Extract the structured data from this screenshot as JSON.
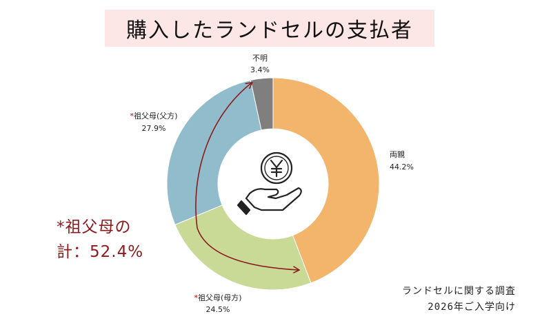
{
  "title": "購入したランドセルの支払者",
  "chart_data": {
    "type": "pie",
    "donut": true,
    "slices": [
      {
        "label": "両親",
        "value": 44.2,
        "value_label": "44.2%",
        "color": "#f2b56b"
      },
      {
        "label": "祖父母(母方)",
        "value": 24.5,
        "value_label": "24.5%",
        "color": "#c8da96",
        "asterisk": "*"
      },
      {
        "label": "祖父母(父方)",
        "value": 27.9,
        "value_label": "27.9%",
        "color": "#91bccb",
        "asterisk": "*"
      },
      {
        "label": "不明",
        "value": 3.4,
        "value_label": "3.4%",
        "color": "#7f7f7f"
      }
    ],
    "center_icon": "yen-coin-in-hand-icon",
    "annotation": {
      "line1": "*祖父母の",
      "line2": "計：52.4%",
      "arrow_color": "#8b1a1a"
    }
  },
  "source": {
    "line1": "ランドセルに関する調査",
    "line2": "2026年ご入学向け"
  }
}
